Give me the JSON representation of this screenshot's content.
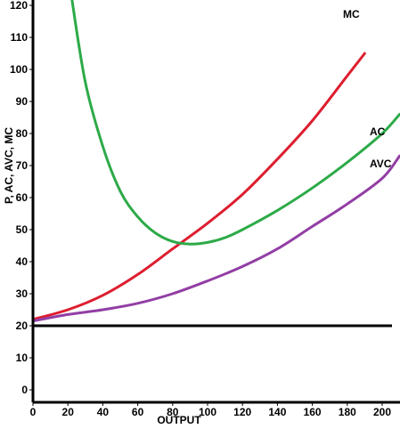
{
  "chart_data": {
    "type": "line",
    "xlabel": "OUTPUT",
    "ylabel": "P, AC, AVC, MC",
    "xlim": [
      0,
      205
    ],
    "ylim": [
      -4,
      123
    ],
    "x_ticks": [
      0,
      20,
      40,
      60,
      80,
      100,
      120,
      140,
      160,
      180,
      200
    ],
    "y_ticks": [
      0,
      10,
      20,
      30,
      40,
      50,
      60,
      70,
      80,
      90,
      100,
      110,
      120
    ],
    "grid": false,
    "legend": "labels at curve ends",
    "hline": {
      "y": 20,
      "color": "#000000"
    },
    "series": [
      {
        "name": "MC",
        "color": "#dd1e2f",
        "x": [
          0,
          20,
          40,
          60,
          80,
          100,
          120,
          140,
          160,
          180,
          190
        ],
        "y": [
          22,
          25,
          29.5,
          36,
          44,
          52,
          61,
          72,
          84,
          98,
          105
        ]
      },
      {
        "name": "AC",
        "color": "#2daa48",
        "x": [
          22,
          30,
          40,
          50,
          60,
          70,
          80,
          90,
          100,
          110,
          120,
          140,
          160,
          180,
          200,
          210
        ],
        "y": [
          123,
          96,
          76,
          62,
          54,
          49,
          46.3,
          45.5,
          46,
          47.5,
          50,
          56,
          63,
          71,
          80,
          86
        ]
      },
      {
        "name": "AVC",
        "color": "#923ea4",
        "x": [
          0,
          20,
          40,
          60,
          80,
          100,
          120,
          140,
          160,
          180,
          200,
          210
        ],
        "y": [
          21.5,
          23.5,
          25,
          27,
          30,
          34,
          38.5,
          44,
          51,
          58,
          66,
          73
        ]
      }
    ]
  }
}
